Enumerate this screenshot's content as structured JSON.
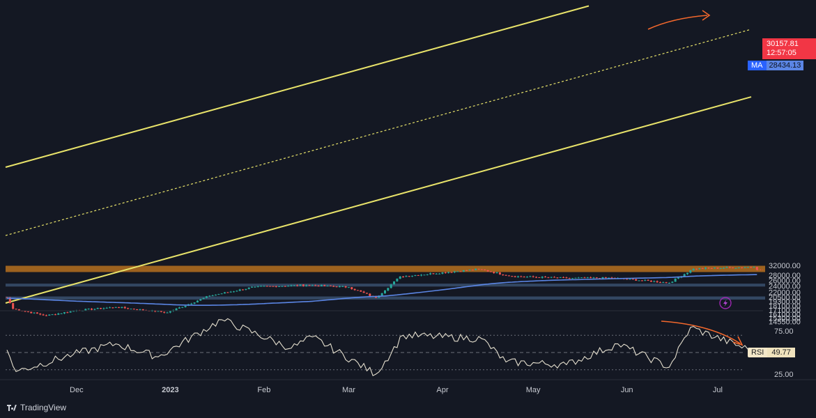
{
  "brand": {
    "name": "TradingView"
  },
  "price": {
    "last": "30157.81",
    "countdown": "12:57:05"
  },
  "ma": {
    "label": "MA",
    "value": "28434.13"
  },
  "rsi": {
    "label": "RSI",
    "value": "49.77"
  },
  "colors": {
    "background": "#141823",
    "up": "#26a69a",
    "down": "#ef5350",
    "ma": "#5b86e5",
    "channel": "#e8e36a",
    "resistance_zone": "#b5701e",
    "support_zone": "#3e5778",
    "arrows": "#f4682c"
  },
  "chart_data": [
    {
      "type": "candlestick",
      "interval": "daily",
      "y_scale": "log",
      "y_ticks": [
        "32000.00",
        "28000.00",
        "26000.00",
        "24000.00",
        "22000.00",
        "20500.00",
        "19300.00",
        "18100.00",
        "17100.00",
        "16100.00",
        "15300.00",
        "14550.00"
      ],
      "x_ticks": [
        "Dec",
        "2023",
        "Feb",
        "Mar",
        "Apr",
        "May",
        "Jun",
        "Jul"
      ],
      "x_range": [
        "2022-11-08",
        "2023-07-14"
      ],
      "zones": [
        {
          "kind": "resistance",
          "from": 29200,
          "to": 31900
        },
        {
          "kind": "support",
          "from": 23800,
          "to": 24800
        },
        {
          "kind": "support",
          "from": 19800,
          "to": 20700
        }
      ],
      "channel": {
        "upper": "solid",
        "middle": "dashed",
        "lower": "solid"
      },
      "approx_close": [
        {
          "date": "2022-11-08",
          "close": 20400
        },
        {
          "date": "2022-11-10",
          "close": 17400
        },
        {
          "date": "2022-11-21",
          "close": 15800
        },
        {
          "date": "2022-12-01",
          "close": 17000
        },
        {
          "date": "2022-12-14",
          "close": 17800
        },
        {
          "date": "2022-12-31",
          "close": 16500
        },
        {
          "date": "2023-01-14",
          "close": 20900
        },
        {
          "date": "2023-01-29",
          "close": 23700
        },
        {
          "date": "2023-02-15",
          "close": 24300
        },
        {
          "date": "2023-03-01",
          "close": 23600
        },
        {
          "date": "2023-03-10",
          "close": 20300
        },
        {
          "date": "2023-03-18",
          "close": 27400
        },
        {
          "date": "2023-04-13",
          "close": 30400
        },
        {
          "date": "2023-04-24",
          "close": 27500
        },
        {
          "date": "2023-05-12",
          "close": 26800
        },
        {
          "date": "2023-05-27",
          "close": 26900
        },
        {
          "date": "2023-06-15",
          "close": 25100
        },
        {
          "date": "2023-06-23",
          "close": 30600
        },
        {
          "date": "2023-07-13",
          "close": 31400
        },
        {
          "date": "2023-07-14",
          "close": 30157.81
        }
      ],
      "ma_value_last": 28434.13
    },
    {
      "type": "line",
      "series": [
        {
          "name": "RSI",
          "last": 49.77
        }
      ],
      "y_ticks": [
        "75.00",
        "25.00"
      ],
      "levels": [
        70,
        50,
        30
      ],
      "approx_values": [
        {
          "date": "2022-11-08",
          "value": 53
        },
        {
          "date": "2022-11-11",
          "value": 28
        },
        {
          "date": "2022-11-30",
          "value": 48
        },
        {
          "date": "2022-12-14",
          "value": 60
        },
        {
          "date": "2022-12-28",
          "value": 45
        },
        {
          "date": "2023-01-18",
          "value": 88
        },
        {
          "date": "2023-02-10",
          "value": 55
        },
        {
          "date": "2023-02-17",
          "value": 68
        },
        {
          "date": "2023-03-10",
          "value": 25
        },
        {
          "date": "2023-03-19",
          "value": 70
        },
        {
          "date": "2023-04-14",
          "value": 66
        },
        {
          "date": "2023-04-22",
          "value": 39
        },
        {
          "date": "2023-05-12",
          "value": 36
        },
        {
          "date": "2023-05-29",
          "value": 60
        },
        {
          "date": "2023-06-15",
          "value": 33
        },
        {
          "date": "2023-06-22",
          "value": 79
        },
        {
          "date": "2023-07-14",
          "value": 49.77
        }
      ]
    }
  ]
}
